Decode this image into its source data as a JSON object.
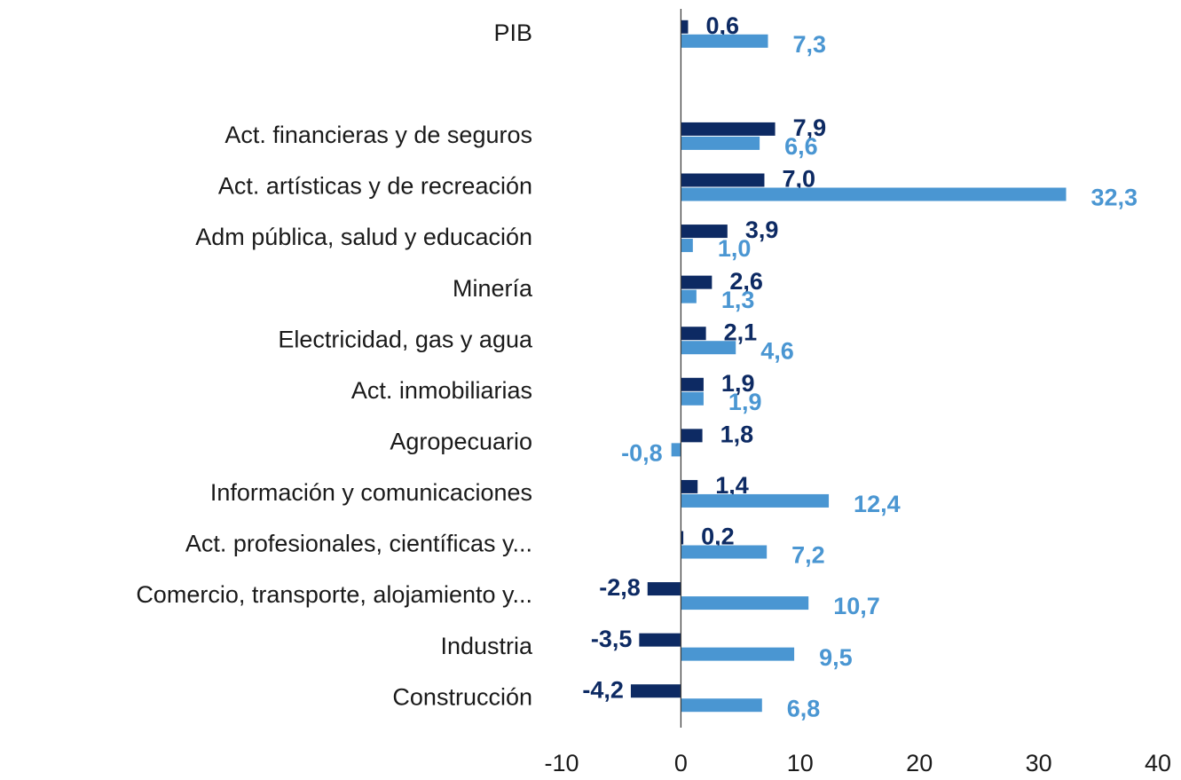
{
  "chart_data": {
    "type": "hbar",
    "categories": [
      "PIB",
      null,
      "Act. financieras y de seguros",
      "Act. artísticas y de recreación",
      "Adm pública, salud y educación",
      "Minería",
      "Electricidad, gas y agua",
      "Act. inmobiliarias",
      "Agropecuario",
      "Información y comunicaciones",
      "Act. profesionales, científicas y...",
      "Comercio, transporte, alojamiento y...",
      "Industria",
      "Construcción"
    ],
    "series": [
      {
        "color": "#0d2a63",
        "values": [
          0.6,
          null,
          7.9,
          7.0,
          3.9,
          2.6,
          2.1,
          1.9,
          1.8,
          1.4,
          0.2,
          -2.8,
          -3.5,
          -4.2
        ],
        "value_labels": [
          "0,6",
          null,
          "7,9",
          "7,0",
          "3,9",
          "2,6",
          "2,1",
          "1,9",
          "1,8",
          "1,4",
          "0,2",
          "-2,8",
          "-3,5",
          "-4,2"
        ]
      },
      {
        "color": "#4a96d2",
        "values": [
          7.3,
          null,
          6.6,
          32.3,
          1.0,
          1.3,
          4.6,
          1.9,
          -0.8,
          12.4,
          7.2,
          10.7,
          9.5,
          6.8
        ],
        "value_labels": [
          "7,3",
          null,
          "6,6",
          "32,3",
          "1,0",
          "1,3",
          "4,6",
          "1,9",
          "-0,8",
          "12,4",
          "7,2",
          "10,7",
          "9,5",
          "6,8"
        ]
      }
    ],
    "xlim": [
      -10,
      40
    ],
    "xticks": [
      -10,
      0,
      10,
      20,
      30,
      40
    ],
    "grid": false
  }
}
